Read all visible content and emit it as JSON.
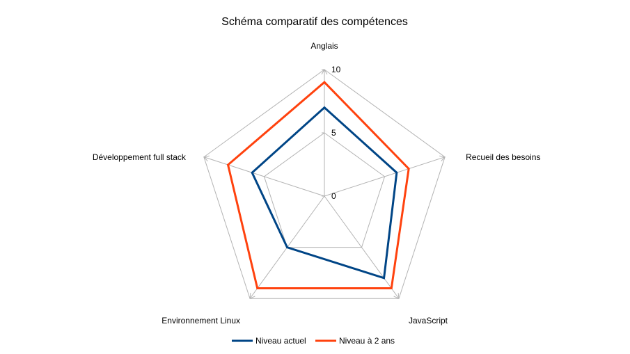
{
  "chart_data": {
    "type": "radar",
    "title": "Schéma comparatif des compétences",
    "categories": [
      "Anglais",
      "Recueil des besoins",
      "JavaScript",
      "Environnement Linux",
      "Développement full stack"
    ],
    "rlim": [
      0,
      10
    ],
    "ticks": [
      0,
      5,
      10
    ],
    "grid": true,
    "legend": "bottom",
    "series": [
      {
        "name": "Niveau actuel",
        "color": "#004586",
        "values": [
          7,
          6,
          8,
          5,
          6
        ]
      },
      {
        "name": "Niveau à 2 ans",
        "color": "#ff420e",
        "values": [
          9,
          7,
          9,
          9,
          8
        ]
      }
    ]
  }
}
